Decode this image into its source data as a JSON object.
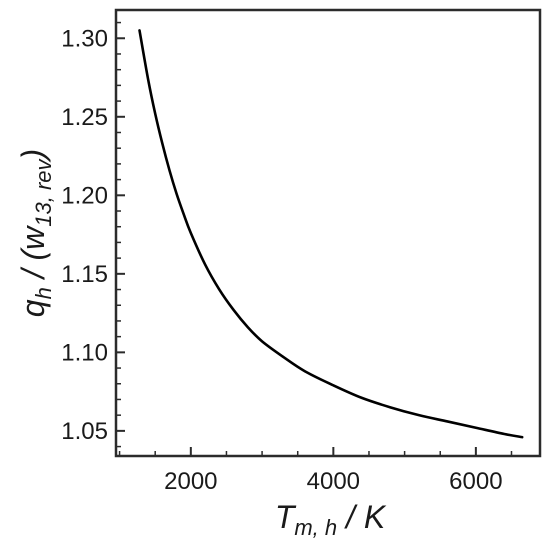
{
  "chart_data": {
    "type": "line",
    "title": "",
    "xlabel": {
      "main": "T",
      "subscript": "m, h",
      "suffix": " / K"
    },
    "ylabel": {
      "main": "q",
      "subscript": "h",
      "middle": " / (w",
      "subscript2": "13, rev",
      "suffix": ")"
    },
    "xlim": [
      950,
      6900
    ],
    "ylim": [
      1.034,
      1.318
    ],
    "xticks": [
      2000,
      4000,
      6000
    ],
    "xtick_labels": [
      "2000",
      "4000",
      "6000"
    ],
    "yticks": [
      1.05,
      1.1,
      1.15,
      1.2,
      1.25,
      1.3
    ],
    "ytick_labels": [
      "1.05",
      "1.10",
      "1.15",
      "1.20",
      "1.25",
      "1.30"
    ],
    "grid": false,
    "legend": "none",
    "series": [
      {
        "color": "#000000",
        "x": [
          1280,
          1400,
          1500,
          1600,
          1700,
          1800,
          1900,
          2000,
          2200,
          2400,
          2600,
          2800,
          3000,
          3300,
          3600,
          4000,
          4400,
          4800,
          5200,
          5600,
          6000,
          6400,
          6650
        ],
        "y": [
          1.305,
          1.274,
          1.252,
          1.233,
          1.216,
          1.201,
          1.188,
          1.176,
          1.156,
          1.14,
          1.127,
          1.116,
          1.107,
          1.097,
          1.088,
          1.079,
          1.071,
          1.065,
          1.06,
          1.056,
          1.052,
          1.048,
          1.046
        ]
      }
    ]
  }
}
